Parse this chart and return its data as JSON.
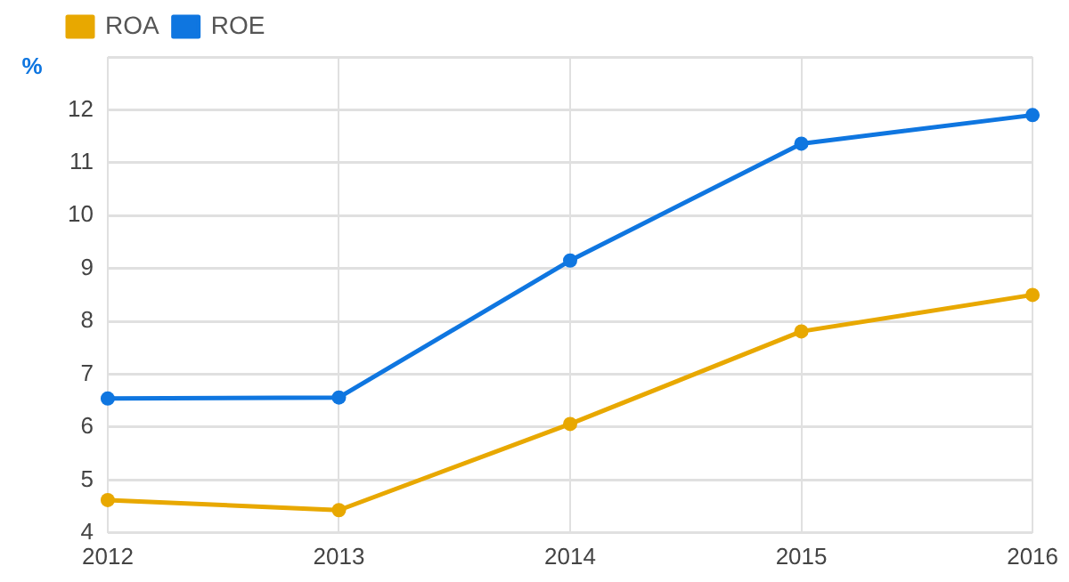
{
  "chart_data": {
    "type": "line",
    "ylabel": "%",
    "categories": [
      "2012",
      "2013",
      "2014",
      "2015",
      "2016"
    ],
    "series": [
      {
        "name": "ROA",
        "color": "#e8a800",
        "values": [
          4.62,
          4.43,
          6.06,
          7.81,
          8.5
        ]
      },
      {
        "name": "ROE",
        "color": "#0f76e0",
        "values": [
          6.54,
          6.56,
          9.15,
          11.36,
          11.9
        ]
      }
    ],
    "ylim": [
      4,
      13
    ],
    "yticks": [
      4,
      5,
      6,
      7,
      8,
      9,
      10,
      11,
      12,
      {
        "value": 13,
        "label": null
      }
    ],
    "grid": true,
    "legend": "top left",
    "marker": "circle",
    "line_style": "solid"
  }
}
